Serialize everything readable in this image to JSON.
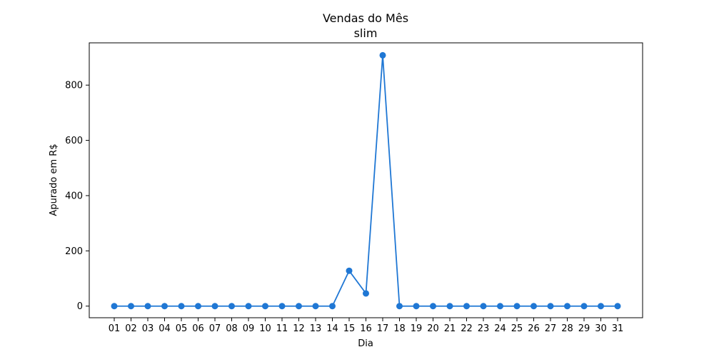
{
  "chart_data": {
    "type": "line",
    "title": "Vendas do Mês",
    "subtitle": "slim",
    "xlabel": "Dia",
    "ylabel": "Apurado em R$",
    "categories": [
      "01",
      "02",
      "03",
      "04",
      "05",
      "06",
      "07",
      "08",
      "09",
      "10",
      "11",
      "12",
      "13",
      "14",
      "15",
      "16",
      "17",
      "18",
      "19",
      "20",
      "21",
      "22",
      "23",
      "24",
      "25",
      "26",
      "27",
      "28",
      "29",
      "30",
      "31"
    ],
    "series": [
      {
        "color": "#1f77d4",
        "values": [
          0,
          0,
          0,
          0,
          0,
          0,
          0,
          0,
          0,
          0,
          0,
          0,
          0,
          0,
          128,
          46,
          908,
          0,
          0,
          0,
          0,
          0,
          0,
          0,
          0,
          0,
          0,
          0,
          0,
          0,
          0
        ]
      }
    ],
    "ylim": [
      -42,
      953
    ],
    "yticks": [
      0,
      200,
      400,
      600,
      800
    ],
    "grid": false,
    "legend": false
  }
}
